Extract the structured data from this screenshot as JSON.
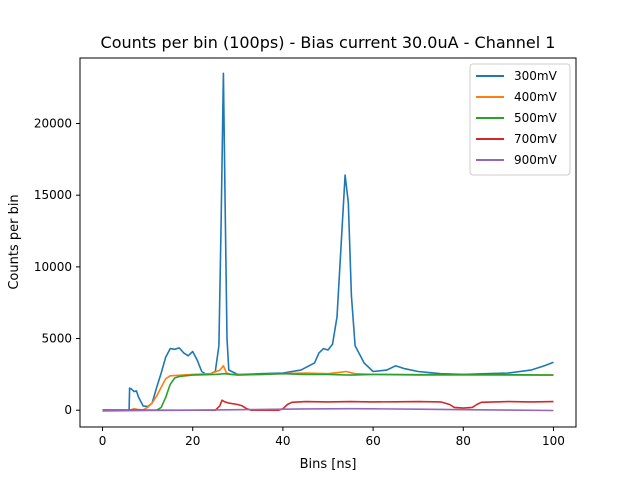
{
  "chart_data": {
    "type": "line",
    "title": "Counts per bin (100ps) - Bias current 30.0uA - Channel 1",
    "xlabel": "Bins [ns]",
    "ylabel": "Counts per bin",
    "xlim": [
      -5,
      105
    ],
    "ylim": [
      -1170,
      24570
    ],
    "xticks": [
      0,
      20,
      40,
      60,
      80,
      100
    ],
    "yticks": [
      0,
      5000,
      10000,
      15000,
      20000
    ],
    "grid": false,
    "legend_position": "top-right",
    "series": [
      {
        "name": "300mV",
        "color": "#1f77b4",
        "points": [
          [
            0,
            0
          ],
          [
            5.9,
            0
          ],
          [
            6,
            1550
          ],
          [
            6.5,
            1450
          ],
          [
            7,
            1300
          ],
          [
            7.5,
            1350
          ],
          [
            8,
            900
          ],
          [
            9,
            300
          ],
          [
            10,
            250
          ],
          [
            11,
            500
          ],
          [
            12,
            1600
          ],
          [
            13,
            2600
          ],
          [
            14,
            3700
          ],
          [
            15,
            4300
          ],
          [
            16,
            4250
          ],
          [
            17,
            4350
          ],
          [
            18,
            4000
          ],
          [
            19,
            3800
          ],
          [
            20,
            4100
          ],
          [
            21,
            3500
          ],
          [
            22,
            2700
          ],
          [
            23,
            2500
          ],
          [
            24,
            2550
          ],
          [
            25,
            2700
          ],
          [
            25.8,
            4500
          ],
          [
            26.3,
            13000
          ],
          [
            26.8,
            23500
          ],
          [
            27.2,
            14000
          ],
          [
            27.6,
            5000
          ],
          [
            28,
            2800
          ],
          [
            30,
            2500
          ],
          [
            35,
            2550
          ],
          [
            40,
            2600
          ],
          [
            44,
            2800
          ],
          [
            47,
            3300
          ],
          [
            48,
            4000
          ],
          [
            49,
            4300
          ],
          [
            50,
            4200
          ],
          [
            51,
            4600
          ],
          [
            52,
            6500
          ],
          [
            53,
            12000
          ],
          [
            53.8,
            16400
          ],
          [
            54.5,
            14500
          ],
          [
            55.2,
            8000
          ],
          [
            56,
            4500
          ],
          [
            58,
            3300
          ],
          [
            60,
            2700
          ],
          [
            63,
            2800
          ],
          [
            65,
            3100
          ],
          [
            67,
            2900
          ],
          [
            70,
            2700
          ],
          [
            75,
            2550
          ],
          [
            80,
            2500
          ],
          [
            85,
            2550
          ],
          [
            90,
            2600
          ],
          [
            95,
            2800
          ],
          [
            98,
            3100
          ],
          [
            100,
            3350
          ]
        ]
      },
      {
        "name": "400mV",
        "color": "#ff7f0e",
        "points": [
          [
            0,
            0
          ],
          [
            6,
            0
          ],
          [
            7,
            100
          ],
          [
            8,
            50
          ],
          [
            9,
            30
          ],
          [
            10,
            200
          ],
          [
            11,
            500
          ],
          [
            12,
            1000
          ],
          [
            13,
            1600
          ],
          [
            14,
            2200
          ],
          [
            15,
            2400
          ],
          [
            20,
            2500
          ],
          [
            24,
            2550
          ],
          [
            26,
            2800
          ],
          [
            26.8,
            3100
          ],
          [
            27.5,
            2600
          ],
          [
            28.5,
            2500
          ],
          [
            35,
            2500
          ],
          [
            40,
            2550
          ],
          [
            45,
            2600
          ],
          [
            50,
            2550
          ],
          [
            53,
            2650
          ],
          [
            54,
            2700
          ],
          [
            56,
            2550
          ],
          [
            60,
            2500
          ],
          [
            70,
            2450
          ],
          [
            80,
            2450
          ],
          [
            90,
            2450
          ],
          [
            100,
            2450
          ]
        ]
      },
      {
        "name": "500mV",
        "color": "#2ca02c",
        "points": [
          [
            0,
            0
          ],
          [
            12,
            0
          ],
          [
            13,
            200
          ],
          [
            14,
            900
          ],
          [
            15,
            1800
          ],
          [
            16,
            2250
          ],
          [
            17,
            2350
          ],
          [
            20,
            2450
          ],
          [
            25,
            2500
          ],
          [
            27,
            2550
          ],
          [
            30,
            2450
          ],
          [
            35,
            2500
          ],
          [
            40,
            2550
          ],
          [
            45,
            2500
          ],
          [
            50,
            2500
          ],
          [
            55,
            2450
          ],
          [
            60,
            2500
          ],
          [
            70,
            2480
          ],
          [
            80,
            2500
          ],
          [
            90,
            2480
          ],
          [
            100,
            2450
          ]
        ]
      },
      {
        "name": "700mV",
        "color": "#d62728",
        "points": [
          [
            0,
            0
          ],
          [
            25,
            0
          ],
          [
            26,
            300
          ],
          [
            26.5,
            700
          ],
          [
            27,
            600
          ],
          [
            28,
            500
          ],
          [
            30,
            400
          ],
          [
            31,
            300
          ],
          [
            32,
            100
          ],
          [
            33,
            0
          ],
          [
            38,
            0
          ],
          [
            39,
            0
          ],
          [
            40,
            100
          ],
          [
            41,
            400
          ],
          [
            42,
            550
          ],
          [
            45,
            600
          ],
          [
            50,
            580
          ],
          [
            55,
            600
          ],
          [
            60,
            580
          ],
          [
            65,
            590
          ],
          [
            70,
            600
          ],
          [
            75,
            580
          ],
          [
            77,
            400
          ],
          [
            78,
            200
          ],
          [
            80,
            150
          ],
          [
            82,
            200
          ],
          [
            83,
            400
          ],
          [
            84,
            550
          ],
          [
            90,
            600
          ],
          [
            95,
            580
          ],
          [
            100,
            600
          ]
        ]
      },
      {
        "name": "900mV",
        "color": "#9467bd",
        "points": [
          [
            0,
            -50
          ],
          [
            10,
            -20
          ],
          [
            20,
            0
          ],
          [
            30,
            40
          ],
          [
            40,
            70
          ],
          [
            45,
            90
          ],
          [
            50,
            100
          ],
          [
            55,
            110
          ],
          [
            60,
            100
          ],
          [
            70,
            70
          ],
          [
            80,
            40
          ],
          [
            90,
            10
          ],
          [
            100,
            -20
          ]
        ]
      }
    ]
  }
}
